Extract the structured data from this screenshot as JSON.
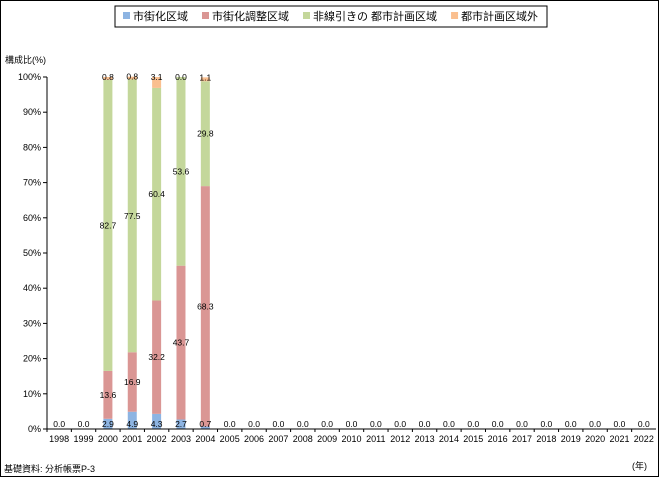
{
  "chart_data": {
    "type": "bar",
    "stacked": true,
    "ylabel": "構成比(%)",
    "xlabel": "(年)",
    "source_note": "基礎資料: 分析帳票P-3",
    "ylim": [
      0,
      100
    ],
    "y_ticks": [
      "0%",
      "10%",
      "20%",
      "30%",
      "40%",
      "50%",
      "60%",
      "70%",
      "80%",
      "90%",
      "100%"
    ],
    "categories": [
      "1998",
      "1999",
      "2000",
      "2001",
      "2002",
      "2003",
      "2004",
      "2005",
      "2006",
      "2007",
      "2008",
      "2009",
      "2010",
      "2011",
      "2012",
      "2013",
      "2014",
      "2015",
      "2016",
      "2017",
      "2018",
      "2019",
      "2020",
      "2021",
      "2022"
    ],
    "legend_position": "top",
    "grid": false,
    "series": [
      {
        "name": "市街化区域",
        "color": "#8DB4E2",
        "values": [
          0,
          0,
          2.9,
          4.9,
          4.3,
          2.7,
          0.7,
          0,
          0,
          0,
          0,
          0,
          0,
          0,
          0,
          0,
          0,
          0,
          0,
          0,
          0,
          0,
          0,
          0,
          0
        ],
        "labels": [
          "0.0",
          "0.0",
          "2.9",
          "4.9",
          "4.3",
          "2.7",
          "0.7",
          "0.0",
          "0.0",
          "0.0",
          "0.0",
          "0.0",
          "0.0",
          "0.0",
          "0.0",
          "0.0",
          "0.0",
          "0.0",
          "0.0",
          "0.0",
          "0.0",
          "0.0",
          "0.0",
          "0.0",
          "0.0"
        ]
      },
      {
        "name": "市街化調整区域",
        "color": "#DA9694",
        "values": [
          0,
          0,
          13.6,
          16.9,
          32.2,
          43.7,
          68.3,
          0,
          0,
          0,
          0,
          0,
          0,
          0,
          0,
          0,
          0,
          0,
          0,
          0,
          0,
          0,
          0,
          0,
          0
        ],
        "labels": [
          "",
          "",
          "13.6",
          "16.9",
          "32.2",
          "43.7",
          "68.3",
          "",
          "",
          "",
          "",
          "",
          "",
          "",
          "",
          "",
          "",
          "",
          "",
          "",
          "",
          "",
          "",
          "",
          ""
        ]
      },
      {
        "name": "非線引きの 都市計画区域",
        "color": "#C4D79B",
        "values": [
          0,
          0,
          82.7,
          77.5,
          60.4,
          53.6,
          29.8,
          0,
          0,
          0,
          0,
          0,
          0,
          0,
          0,
          0,
          0,
          0,
          0,
          0,
          0,
          0,
          0,
          0,
          0
        ],
        "labels": [
          "",
          "",
          "82.7",
          "77.5",
          "60.4",
          "53.6",
          "29.8",
          "",
          "",
          "",
          "",
          "",
          "",
          "",
          "",
          "",
          "",
          "",
          "",
          "",
          "",
          "",
          "",
          "",
          ""
        ]
      },
      {
        "name": "都市計画区域外",
        "color": "#FABF8F",
        "values": [
          0,
          0,
          0.8,
          0.8,
          3.1,
          0.0,
          1.1,
          0,
          0,
          0,
          0,
          0,
          0,
          0,
          0,
          0,
          0,
          0,
          0,
          0,
          0,
          0,
          0,
          0,
          0
        ],
        "labels": [
          "",
          "",
          "0.8",
          "0.8",
          "3.1",
          "0.0",
          "1.1",
          "",
          "",
          "",
          "",
          "",
          "",
          "",
          "",
          "",
          "",
          "",
          "",
          "",
          "",
          "",
          "",
          "",
          ""
        ]
      }
    ]
  }
}
